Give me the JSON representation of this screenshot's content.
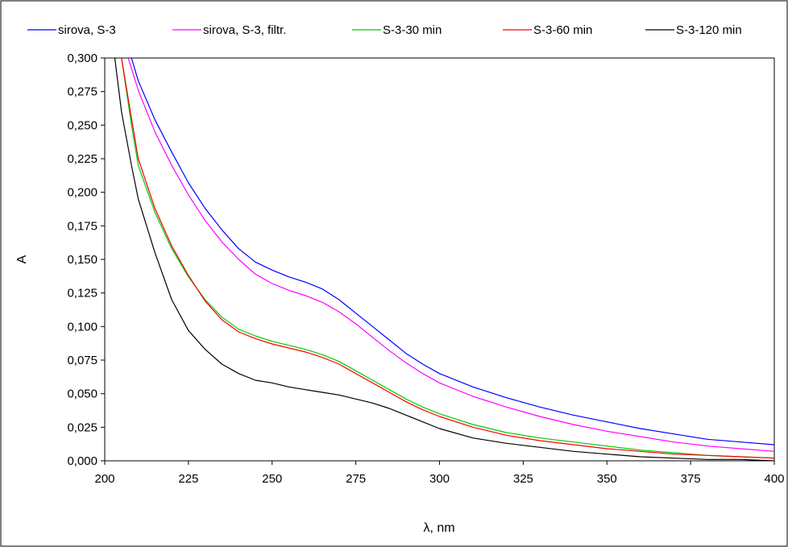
{
  "chart_data": {
    "type": "line",
    "title": "",
    "xlabel": "λ, nm",
    "ylabel": "A",
    "xlim": [
      200,
      400
    ],
    "ylim": [
      0,
      0.3
    ],
    "x_ticks": [
      "200",
      "225",
      "250",
      "275",
      "300",
      "325",
      "350",
      "375",
      "400"
    ],
    "y_ticks": [
      "0,000",
      "0,025",
      "0,050",
      "0,075",
      "0,100",
      "0,125",
      "0,150",
      "0,175",
      "0,200",
      "0,225",
      "0,250",
      "0,275",
      "0,300"
    ],
    "grid": false,
    "legend_position": "top",
    "series": [
      {
        "name": "sirova, S-3",
        "color": "#0000ff",
        "x": [
          208,
          210,
          215,
          220,
          225,
          230,
          235,
          240,
          245,
          250,
          255,
          260,
          265,
          270,
          275,
          280,
          285,
          290,
          295,
          300,
          310,
          320,
          330,
          340,
          350,
          360,
          370,
          380,
          390,
          400
        ],
        "y": [
          0.3,
          0.283,
          0.254,
          0.23,
          0.207,
          0.188,
          0.172,
          0.158,
          0.148,
          0.142,
          0.137,
          0.133,
          0.128,
          0.12,
          0.11,
          0.1,
          0.09,
          0.08,
          0.072,
          0.065,
          0.055,
          0.047,
          0.04,
          0.034,
          0.029,
          0.024,
          0.02,
          0.016,
          0.014,
          0.012
        ]
      },
      {
        "name": "sirova, S-3, filtr.",
        "color": "#ff00ff",
        "x": [
          207,
          210,
          215,
          220,
          225,
          230,
          235,
          240,
          245,
          250,
          255,
          260,
          265,
          270,
          275,
          280,
          285,
          290,
          295,
          300,
          310,
          320,
          330,
          340,
          350,
          360,
          370,
          380,
          390,
          400
        ],
        "y": [
          0.3,
          0.276,
          0.245,
          0.22,
          0.198,
          0.179,
          0.163,
          0.15,
          0.139,
          0.132,
          0.127,
          0.123,
          0.118,
          0.111,
          0.102,
          0.092,
          0.082,
          0.073,
          0.065,
          0.058,
          0.048,
          0.04,
          0.033,
          0.027,
          0.022,
          0.018,
          0.014,
          0.011,
          0.009,
          0.007
        ]
      },
      {
        "name": "S-3-30 min",
        "color": "#00cc00",
        "x": [
          205,
          208,
          210,
          215,
          220,
          225,
          230,
          235,
          240,
          245,
          250,
          255,
          260,
          265,
          270,
          275,
          280,
          285,
          290,
          295,
          300,
          310,
          320,
          330,
          340,
          350,
          360,
          370,
          380,
          390,
          400
        ],
        "y": [
          0.3,
          0.25,
          0.22,
          0.185,
          0.158,
          0.137,
          0.12,
          0.107,
          0.098,
          0.093,
          0.089,
          0.086,
          0.083,
          0.079,
          0.074,
          0.067,
          0.06,
          0.053,
          0.046,
          0.04,
          0.035,
          0.027,
          0.021,
          0.017,
          0.014,
          0.011,
          0.008,
          0.006,
          0.004,
          0.003,
          0.002
        ]
      },
      {
        "name": "S-3-60 min",
        "color": "#ff0000",
        "x": [
          205,
          208,
          210,
          215,
          220,
          225,
          230,
          235,
          240,
          245,
          250,
          255,
          260,
          265,
          270,
          275,
          280,
          285,
          290,
          295,
          300,
          310,
          320,
          330,
          340,
          350,
          360,
          370,
          380,
          390,
          400
        ],
        "y": [
          0.3,
          0.255,
          0.225,
          0.188,
          0.16,
          0.138,
          0.119,
          0.105,
          0.096,
          0.091,
          0.087,
          0.084,
          0.081,
          0.077,
          0.072,
          0.065,
          0.058,
          0.051,
          0.044,
          0.038,
          0.033,
          0.025,
          0.019,
          0.015,
          0.012,
          0.009,
          0.007,
          0.005,
          0.004,
          0.003,
          0.002
        ]
      },
      {
        "name": "S-3-120 min",
        "color": "#000000",
        "x": [
          203,
          205,
          208,
          210,
          215,
          220,
          225,
          230,
          235,
          240,
          245,
          250,
          255,
          260,
          265,
          270,
          275,
          280,
          285,
          290,
          295,
          300,
          310,
          320,
          330,
          340,
          350,
          360,
          370,
          380,
          390,
          400
        ],
        "y": [
          0.3,
          0.26,
          0.22,
          0.195,
          0.155,
          0.12,
          0.097,
          0.083,
          0.072,
          0.065,
          0.06,
          0.058,
          0.055,
          0.053,
          0.051,
          0.049,
          0.046,
          0.043,
          0.039,
          0.034,
          0.029,
          0.024,
          0.017,
          0.013,
          0.01,
          0.007,
          0.005,
          0.003,
          0.002,
          0.001,
          0.001,
          0.0
        ]
      }
    ]
  }
}
